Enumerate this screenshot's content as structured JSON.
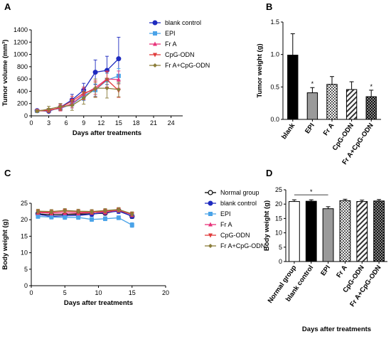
{
  "colors": {
    "blank": "#1e2bbf",
    "epi": "#4aa3e8",
    "fra": "#e8337a",
    "cpg": "#e03a3a",
    "combo": "#8b7d3a",
    "normal": "#000000"
  },
  "panels": {
    "A": {
      "letter": "A"
    },
    "B": {
      "letter": "B"
    },
    "C": {
      "letter": "C"
    },
    "D": {
      "letter": "D"
    }
  },
  "chart_data": [
    {
      "id": "A",
      "type": "line",
      "xlabel": "Days after treatments",
      "ylabel": "Tumor volume (mm³)",
      "xlim": [
        0,
        26
      ],
      "ylim": [
        0,
        1400
      ],
      "xticks": [
        0,
        3,
        6,
        9,
        12,
        15,
        18,
        21,
        24
      ],
      "yticks": [
        0,
        200,
        400,
        600,
        800,
        1000,
        1200,
        1400
      ],
      "x": [
        1,
        3,
        5,
        7,
        9,
        11,
        13,
        15
      ],
      "legend_position": "top-right",
      "series": [
        {
          "name": "blank control",
          "key": "blank",
          "marker": "circle",
          "values": [
            85,
            75,
            140,
            260,
            420,
            710,
            740,
            930
          ],
          "errors": [
            15,
            20,
            60,
            90,
            110,
            200,
            230,
            350
          ]
        },
        {
          "name": "EPI",
          "key": "epi",
          "marker": "square",
          "values": [
            80,
            90,
            120,
            190,
            330,
            420,
            580,
            650
          ],
          "errors": [
            10,
            25,
            40,
            60,
            80,
            100,
            110,
            120
          ]
        },
        {
          "name": "Fr A",
          "key": "fra",
          "marker": "triangle-up",
          "values": [
            85,
            95,
            125,
            200,
            350,
            460,
            600,
            590
          ],
          "errors": [
            12,
            25,
            45,
            70,
            90,
            110,
            130,
            140
          ]
        },
        {
          "name": "CpG-ODN",
          "key": "cpg",
          "marker": "triangle-down",
          "values": [
            80,
            85,
            135,
            240,
            370,
            430,
            590,
            410
          ],
          "errors": [
            15,
            30,
            50,
            80,
            100,
            120,
            130,
            110
          ]
        },
        {
          "name": "Fr A+CpG-ODN",
          "key": "combo",
          "marker": "diamond",
          "values": [
            75,
            110,
            150,
            170,
            290,
            450,
            450,
            430
          ],
          "errors": [
            15,
            45,
            50,
            80,
            100,
            150,
            160,
            120
          ]
        }
      ]
    },
    {
      "id": "B",
      "type": "bar",
      "ylabel": "Tumor weight (g)",
      "ylim": [
        0,
        1.5
      ],
      "yticks": [
        0.0,
        0.5,
        1.0,
        1.5
      ],
      "categories": [
        "blank",
        "EPI",
        "Fr A",
        "CpG-ODN",
        "Fr A+CpG-ODN"
      ],
      "values": [
        0.99,
        0.41,
        0.54,
        0.46,
        0.35
      ],
      "errors": [
        0.33,
        0.08,
        0.12,
        0.12,
        0.1
      ],
      "fills": [
        "solid-black",
        "solid-gray",
        "checker",
        "diagonal",
        "checker-dark"
      ],
      "significance": [
        "",
        "*",
        "",
        "",
        "*"
      ]
    },
    {
      "id": "C",
      "type": "line",
      "xlabel": "Days after treatments",
      "ylabel": "Body weight (g)",
      "xlim": [
        0,
        20
      ],
      "ylim": [
        0,
        25
      ],
      "xticks": [
        0,
        5,
        10,
        15,
        20
      ],
      "yticks": [
        0,
        5,
        10,
        15,
        20,
        25
      ],
      "x": [
        1,
        3,
        5,
        7,
        9,
        11,
        13,
        15
      ],
      "legend_position": "top-right",
      "series": [
        {
          "name": "Normal group",
          "key": "normal",
          "marker": "open-circle",
          "values": [
            21.8,
            21.5,
            21.6,
            21.7,
            21.8,
            22.0,
            22.8,
            21.0
          ],
          "errors": [
            0.6,
            0.6,
            0.6,
            0.6,
            0.6,
            0.6,
            0.6,
            0.6
          ]
        },
        {
          "name": "blank control",
          "key": "blank",
          "marker": "circle",
          "values": [
            21.6,
            21.0,
            21.2,
            21.3,
            21.7,
            22.2,
            22.6,
            21.1
          ],
          "errors": [
            0.7,
            0.7,
            0.7,
            0.7,
            0.7,
            0.7,
            0.7,
            0.7
          ]
        },
        {
          "name": "EPI",
          "key": "epi",
          "marker": "square",
          "values": [
            21.0,
            20.8,
            20.7,
            20.7,
            20.1,
            20.3,
            20.6,
            18.4
          ],
          "errors": [
            0.6,
            0.6,
            0.6,
            0.6,
            0.6,
            0.6,
            0.6,
            0.7
          ]
        },
        {
          "name": "Fr A",
          "key": "fra",
          "marker": "triangle-up",
          "values": [
            22.2,
            22.0,
            22.1,
            22.0,
            22.2,
            22.3,
            22.9,
            21.5
          ],
          "errors": [
            0.6,
            0.6,
            0.6,
            0.6,
            0.6,
            0.6,
            0.6,
            0.6
          ]
        },
        {
          "name": "CpG-ODN",
          "key": "cpg",
          "marker": "triangle-down",
          "values": [
            22.4,
            22.3,
            22.6,
            22.4,
            22.3,
            22.6,
            23.0,
            21.7
          ],
          "errors": [
            0.6,
            0.6,
            0.6,
            0.6,
            0.6,
            0.6,
            0.6,
            0.6
          ]
        },
        {
          "name": "Fr A+CpG-ODN",
          "key": "combo",
          "marker": "diamond",
          "values": [
            22.6,
            22.5,
            22.8,
            22.6,
            22.5,
            22.8,
            23.1,
            21.8
          ],
          "errors": [
            0.6,
            0.6,
            0.6,
            0.6,
            0.6,
            0.6,
            0.6,
            0.6
          ]
        }
      ]
    },
    {
      "id": "D",
      "type": "bar",
      "xlabel": "Days after treatments",
      "ylabel": "Body weight (g)",
      "ylim": [
        0,
        25
      ],
      "yticks": [
        0,
        5,
        10,
        15,
        20,
        25
      ],
      "categories": [
        "Normal group",
        "blank control",
        "EPI",
        "Fr A",
        "CpG-ODN",
        "Fr A+CpG-ODN"
      ],
      "values": [
        20.9,
        21.0,
        18.4,
        21.2,
        20.9,
        21.1
      ],
      "errors": [
        0.6,
        0.5,
        0.7,
        0.5,
        0.5,
        0.5
      ],
      "fills": [
        "white",
        "solid-black",
        "solid-gray",
        "checker",
        "diagonal",
        "checker-dark"
      ],
      "significance_bracket": {
        "from": 0,
        "to": 2,
        "label": "*"
      }
    }
  ]
}
